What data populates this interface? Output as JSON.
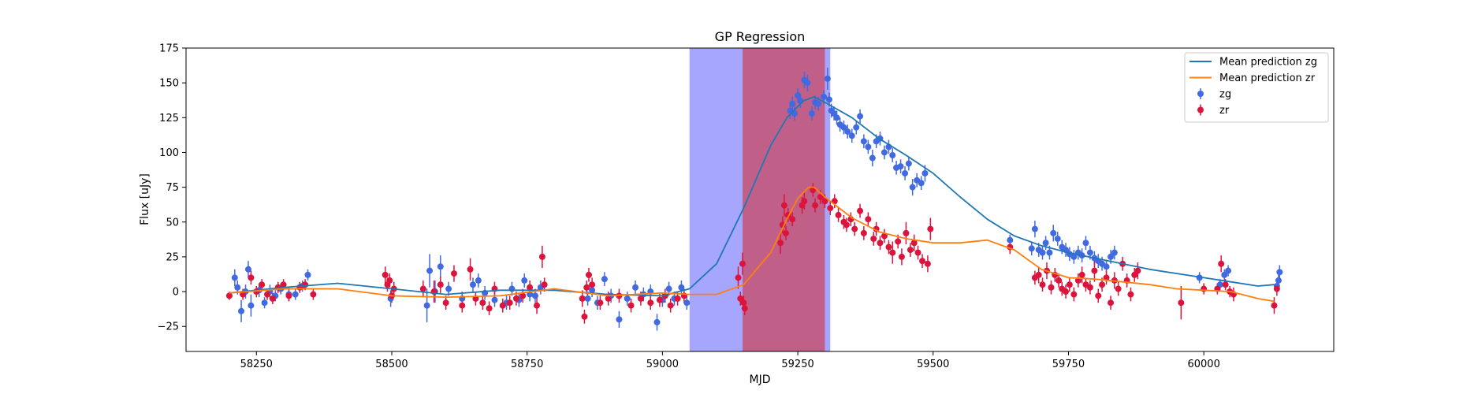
{
  "chart_data": {
    "type": "scatter",
    "title": "GP Regression",
    "xlabel": "MJD",
    "ylabel": "Flux [uJy]",
    "xlim": [
      58120,
      60240
    ],
    "ylim": [
      -43,
      175
    ],
    "x_ticks": [
      58250,
      58500,
      58750,
      59000,
      59250,
      59500,
      59750,
      60000
    ],
    "y_ticks": [
      -25,
      0,
      25,
      50,
      75,
      100,
      125,
      150,
      175
    ],
    "grid": false,
    "legend_position": "top-right",
    "shaded_regions": [
      {
        "x_start": 59050,
        "x_end": 59310,
        "color": "#0000ff",
        "opacity": 0.35
      },
      {
        "x_start": 59148,
        "x_end": 59300,
        "color": "#d62728",
        "opacity": 0.55
      }
    ],
    "series": [
      {
        "name": "Mean prediction zg",
        "kind": "line",
        "color": "#1f77b4",
        "x": [
          58200,
          58300,
          58400,
          58500,
          58600,
          58700,
          58800,
          58900,
          59000,
          59050,
          59100,
          59150,
          59200,
          59230,
          59260,
          59280,
          59300,
          59350,
          59400,
          59450,
          59500,
          59550,
          59600,
          59650,
          59700,
          59750,
          59800,
          59850,
          59900,
          59950,
          60000,
          60050,
          60100,
          60130
        ],
        "y": [
          -1,
          3,
          6,
          2,
          -2,
          1,
          1,
          -2,
          -3,
          2,
          20,
          60,
          105,
          125,
          137,
          140,
          136,
          125,
          110,
          98,
          85,
          68,
          52,
          40,
          33,
          28,
          24,
          20,
          16,
          13,
          10,
          7,
          4,
          5
        ]
      },
      {
        "name": "Mean prediction zr",
        "kind": "line",
        "color": "#ff7f0e",
        "x": [
          58200,
          58300,
          58400,
          58500,
          58600,
          58700,
          58800,
          58900,
          59000,
          59050,
          59100,
          59150,
          59200,
          59230,
          59250,
          59270,
          59280,
          59300,
          59350,
          59400,
          59450,
          59500,
          59550,
          59600,
          59650,
          59700,
          59750,
          59800,
          59850,
          59900,
          59950,
          60000,
          60050,
          60100,
          60130
        ],
        "y": [
          -1,
          2,
          2,
          -3,
          -4,
          -3,
          2,
          -3,
          -1,
          -2,
          -2,
          5,
          28,
          52,
          67,
          75,
          75,
          68,
          53,
          43,
          38,
          35,
          35,
          37,
          30,
          16,
          10,
          9,
          7,
          5,
          2,
          1,
          0,
          -5,
          -7
        ]
      },
      {
        "name": "zg",
        "kind": "errorbar",
        "color": "#4169e1",
        "x": [
          58210,
          58215,
          58222,
          58230,
          58235,
          58240,
          58255,
          58265,
          58275,
          58285,
          58295,
          58310,
          58322,
          58335,
          58345,
          58498,
          58565,
          58570,
          58580,
          58590,
          58605,
          58630,
          58650,
          58660,
          58672,
          58690,
          58712,
          58722,
          58735,
          58745,
          58755,
          58765,
          58775,
          58862,
          58870,
          58880,
          58893,
          58905,
          58920,
          58935,
          58950,
          58965,
          58978,
          58990,
          59000,
          59012,
          59022,
          59035,
          59045,
          59236,
          59240,
          59244,
          59250,
          59255,
          59262,
          59268,
          59276,
          59282,
          59288,
          59298,
          59305,
          59308,
          59312,
          59317,
          59322,
          59328,
          59335,
          59342,
          59350,
          59358,
          59365,
          59372,
          59380,
          59388,
          59395,
          59402,
          59410,
          59418,
          59425,
          59432,
          59440,
          59448,
          59455,
          59462,
          59470,
          59478,
          59485,
          59642,
          59682,
          59688,
          59695,
          59702,
          59708,
          59715,
          59722,
          59730,
          59738,
          59745,
          59752,
          59760,
          59768,
          59775,
          59782,
          59790,
          59798,
          59805,
          59812,
          59820,
          59828,
          59835,
          59992,
          60030,
          60038,
          60045,
          60135,
          60138,
          60140
        ],
        "y": [
          10,
          3,
          -14,
          0,
          16,
          -10,
          1,
          -8,
          0,
          -3,
          2,
          -2,
          -2,
          4,
          12,
          -5,
          -10,
          15,
          0,
          18,
          2,
          -5,
          5,
          8,
          -1,
          -6,
          -8,
          2,
          -6,
          8,
          -2,
          -3,
          3,
          -5,
          1,
          -8,
          9,
          -3,
          -20,
          -5,
          3,
          -2,
          0,
          -22,
          -6,
          2,
          -5,
          3,
          -8,
          130,
          135,
          128,
          141,
          137,
          152,
          150,
          128,
          136,
          135,
          140,
          153,
          138,
          130,
          128,
          125,
          120,
          118,
          115,
          112,
          118,
          126,
          108,
          104,
          96,
          108,
          110,
          100,
          104,
          98,
          89,
          90,
          85,
          92,
          75,
          80,
          78,
          85,
          37,
          31,
          45,
          30,
          28,
          35,
          28,
          42,
          38,
          32,
          30,
          27,
          25,
          28,
          26,
          35,
          28,
          24,
          22,
          20,
          18,
          25,
          28,
          10,
          5,
          12,
          15,
          4,
          8,
          14
        ],
        "yerr": [
          6,
          5,
          8,
          5,
          6,
          8,
          5,
          4,
          5,
          4,
          4,
          5,
          4,
          4,
          4,
          6,
          12,
          12,
          8,
          8,
          5,
          5,
          5,
          5,
          5,
          5,
          5,
          5,
          5,
          5,
          5,
          5,
          5,
          5,
          5,
          5,
          5,
          5,
          6,
          5,
          5,
          5,
          5,
          6,
          5,
          5,
          5,
          5,
          5,
          6,
          5,
          5,
          5,
          5,
          6,
          6,
          5,
          5,
          5,
          5,
          8,
          5,
          5,
          5,
          5,
          5,
          5,
          5,
          5,
          5,
          5,
          5,
          5,
          6,
          5,
          5,
          5,
          5,
          5,
          5,
          5,
          5,
          5,
          6,
          5,
          5,
          6,
          4,
          5,
          6,
          5,
          5,
          5,
          5,
          6,
          5,
          5,
          5,
          5,
          5,
          5,
          5,
          5,
          5,
          5,
          5,
          5,
          5,
          5,
          5,
          4,
          4,
          4,
          4,
          4,
          4,
          5
        ]
      },
      {
        "name": "zr",
        "kind": "errorbar",
        "color": "#dc143c",
        "x": [
          58200,
          58225,
          58240,
          58250,
          58260,
          58270,
          58280,
          58290,
          58300,
          58310,
          58330,
          58340,
          58355,
          58488,
          58492,
          58496,
          58500,
          58504,
          58558,
          58578,
          58590,
          58600,
          58615,
          58630,
          58645,
          58655,
          58668,
          58680,
          58690,
          58705,
          58718,
          58730,
          58742,
          58755,
          58768,
          58778,
          58782,
          58852,
          58856,
          58860,
          58864,
          58870,
          58885,
          58900,
          58920,
          58942,
          58960,
          58978,
          58995,
          59005,
          59015,
          59028,
          59040,
          59140,
          59144,
          59148,
          59150,
          59152,
          59218,
          59222,
          59225,
          59228,
          59232,
          59240,
          59258,
          59262,
          59278,
          59282,
          59292,
          59300,
          59310,
          59318,
          59325,
          59335,
          59340,
          59348,
          59355,
          59365,
          59372,
          59380,
          59390,
          59395,
          59402,
          59410,
          59418,
          59425,
          59435,
          59442,
          59450,
          59458,
          59465,
          59472,
          59480,
          59490,
          59495,
          59642,
          59688,
          59695,
          59702,
          59710,
          59718,
          59725,
          59732,
          59738,
          59745,
          59752,
          59760,
          59768,
          59775,
          59782,
          59790,
          59798,
          59805,
          59812,
          59820,
          59828,
          59835,
          59842,
          59850,
          59858,
          59865,
          59872,
          59878,
          59958,
          60000,
          60025,
          60032,
          60040,
          60048,
          60055,
          60130,
          60135
        ],
        "y": [
          -3,
          -2,
          10,
          0,
          5,
          -2,
          -5,
          3,
          5,
          -3,
          3,
          5,
          -2,
          12,
          5,
          8,
          -3,
          2,
          2,
          0,
          5,
          -8,
          13,
          -10,
          16,
          -5,
          -8,
          -12,
          2,
          -10,
          -8,
          -5,
          -3,
          3,
          -10,
          25,
          5,
          -5,
          -18,
          3,
          12,
          5,
          -8,
          -5,
          -3,
          -10,
          -5,
          -8,
          -6,
          -3,
          -10,
          -5,
          -3,
          10,
          -5,
          20,
          -8,
          -12,
          35,
          48,
          62,
          42,
          55,
          52,
          62,
          65,
          73,
          62,
          68,
          65,
          60,
          65,
          55,
          50,
          48,
          52,
          45,
          58,
          42,
          52,
          38,
          45,
          35,
          40,
          32,
          28,
          36,
          25,
          42,
          30,
          35,
          28,
          22,
          20,
          45,
          32,
          10,
          12,
          5,
          15,
          3,
          12,
          8,
          2,
          0,
          5,
          -2,
          8,
          12,
          5,
          3,
          15,
          -3,
          5,
          10,
          -8,
          8,
          2,
          20,
          8,
          -2,
          12,
          15,
          -8,
          2,
          2,
          20,
          5,
          0,
          -2,
          -10,
          2
        ],
        "yerr": [
          3,
          4,
          5,
          4,
          4,
          4,
          4,
          4,
          4,
          4,
          4,
          4,
          4,
          6,
          5,
          5,
          5,
          5,
          6,
          8,
          6,
          5,
          6,
          5,
          8,
          5,
          5,
          5,
          5,
          5,
          5,
          5,
          5,
          5,
          6,
          8,
          5,
          6,
          5,
          5,
          5,
          5,
          5,
          5,
          5,
          5,
          5,
          5,
          5,
          5,
          5,
          5,
          5,
          8,
          5,
          8,
          5,
          5,
          8,
          6,
          8,
          5,
          5,
          5,
          6,
          6,
          5,
          5,
          5,
          5,
          5,
          5,
          5,
          5,
          5,
          5,
          5,
          5,
          5,
          5,
          5,
          5,
          5,
          5,
          5,
          8,
          5,
          6,
          8,
          5,
          6,
          5,
          5,
          6,
          8,
          5,
          5,
          6,
          5,
          6,
          5,
          5,
          5,
          5,
          5,
          5,
          5,
          5,
          6,
          5,
          5,
          8,
          5,
          5,
          5,
          5,
          6,
          5,
          5,
          5,
          5,
          5,
          6,
          12,
          4,
          4,
          6,
          4,
          4,
          5,
          6,
          5
        ]
      }
    ]
  }
}
